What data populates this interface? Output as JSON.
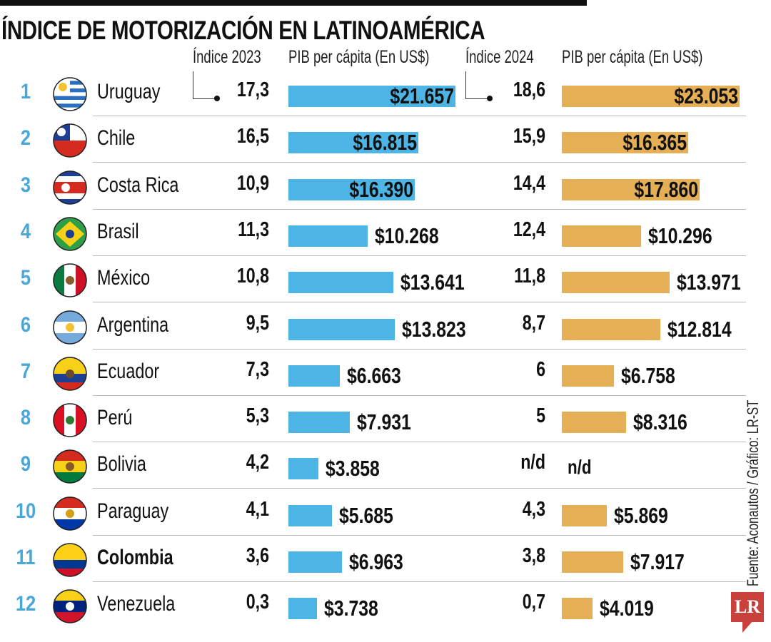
{
  "chart_data": {
    "type": "table",
    "title": "ÍNDICE DE MOTORIZACIÓN  EN LATINOAMÉRICA",
    "columns": [
      "Índice 2023",
      "PIB per cápita (En US$)",
      "Índice 2024",
      "PIB per cápita (En US$)"
    ],
    "colors": {
      "pib_2023": "#4db4e6",
      "pib_2024": "#e5b055",
      "rank": "#4aa8d8"
    },
    "rows": [
      {
        "rank": "1",
        "country": "Uruguay",
        "flag": "uruguay-flag-icon",
        "idx2023": "17,3",
        "pib2023": 21657,
        "pib2023_label": "$21.657",
        "idx2024": "18,6",
        "pib2024": 23053,
        "pib2024_label": "$23.053"
      },
      {
        "rank": "2",
        "country": "Chile",
        "flag": "chile-flag-icon",
        "idx2023": "16,5",
        "pib2023": 16815,
        "pib2023_label": "$16.815",
        "idx2024": "15,9",
        "pib2024": 16365,
        "pib2024_label": "$16.365"
      },
      {
        "rank": "3",
        "country": "Costa Rica",
        "flag": "costa-rica-flag-icon",
        "idx2023": "10,9",
        "pib2023": 16390,
        "pib2023_label": "$16.390",
        "idx2024": "14,4",
        "pib2024": 17860,
        "pib2024_label": "$17.860"
      },
      {
        "rank": "4",
        "country": "Brasil",
        "flag": "brasil-flag-icon",
        "idx2023": "11,3",
        "pib2023": 10268,
        "pib2023_label": "$10.268",
        "idx2024": "12,4",
        "pib2024": 10296,
        "pib2024_label": "$10.296"
      },
      {
        "rank": "5",
        "country": "México",
        "flag": "mexico-flag-icon",
        "idx2023": "10,8",
        "pib2023": 13641,
        "pib2023_label": "$13.641",
        "idx2024": "11,8",
        "pib2024": 13971,
        "pib2024_label": "$13.971"
      },
      {
        "rank": "6",
        "country": "Argentina",
        "flag": "argentina-flag-icon",
        "idx2023": "9,5",
        "pib2023": 13823,
        "pib2023_label": "$13.823",
        "idx2024": "8,7",
        "pib2024": 12814,
        "pib2024_label": "$12.814"
      },
      {
        "rank": "7",
        "country": "Ecuador",
        "flag": "ecuador-flag-icon",
        "idx2023": "7,3",
        "pib2023": 6663,
        "pib2023_label": "$6.663",
        "idx2024": "6",
        "pib2024": 6758,
        "pib2024_label": "$6.758"
      },
      {
        "rank": "8",
        "country": "Perú",
        "flag": "peru-flag-icon",
        "idx2023": "5,3",
        "pib2023": 7931,
        "pib2023_label": "$7.931",
        "idx2024": "5",
        "pib2024": 8316,
        "pib2024_label": "$8.316"
      },
      {
        "rank": "9",
        "country": "Bolivia",
        "flag": "bolivia-flag-icon",
        "idx2023": "4,2",
        "pib2023": 3858,
        "pib2023_label": "$3.858",
        "idx2024": "n/d",
        "pib2024": null,
        "pib2024_label": "n/d"
      },
      {
        "rank": "10",
        "country": "Paraguay",
        "flag": "paraguay-flag-icon",
        "idx2023": "4,1",
        "pib2023": 5685,
        "pib2023_label": "$5.685",
        "idx2024": "4,3",
        "pib2024": 5869,
        "pib2024_label": "$5.869"
      },
      {
        "rank": "11",
        "country": "Colombia",
        "flag": "colombia-flag-icon",
        "highlight": true,
        "idx2023": "3,6",
        "pib2023": 6963,
        "pib2023_label": "$6.963",
        "idx2024": "3,8",
        "pib2024": 7917,
        "pib2024_label": "$7.917"
      },
      {
        "rank": "12",
        "country": "Venezuela",
        "flag": "venezuela-flag-icon",
        "idx2023": "0,3",
        "pib2023": 3738,
        "pib2023_label": "$3.738",
        "idx2024": "0,7",
        "pib2024": 4019,
        "pib2024_label": "$4.019"
      }
    ]
  },
  "footer": {
    "source": "Fuente: Aconautos / Gráfico: LR-ST",
    "logo": "LR"
  }
}
